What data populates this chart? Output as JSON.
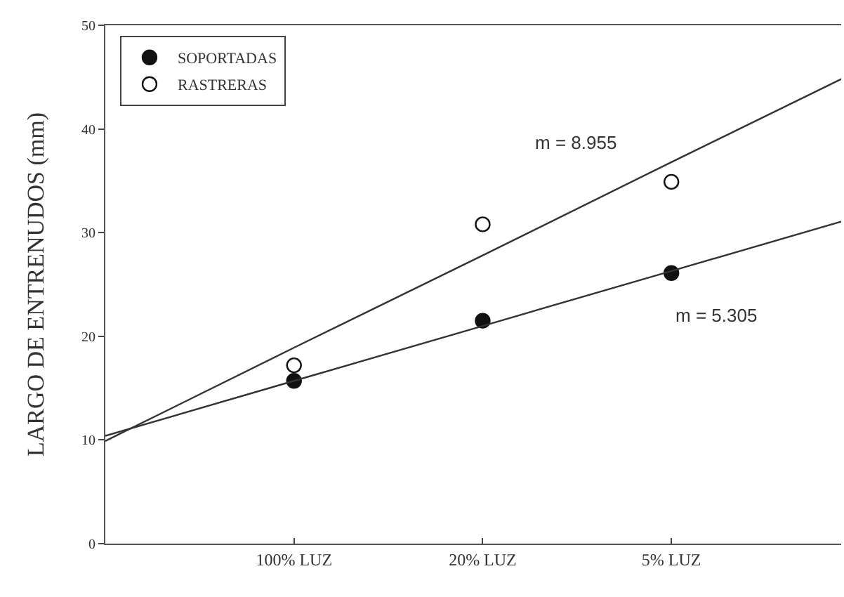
{
  "chart_data": {
    "type": "scatter",
    "ylabel": "LARGO DE ENTRENUDOS (mm)",
    "categories": [
      null,
      "100% LUZ",
      "20% LUZ",
      "5% LUZ",
      null
    ],
    "ylim": [
      0,
      50
    ],
    "yticks": [
      0,
      10,
      20,
      30,
      40,
      50
    ],
    "grid": false,
    "legend": "top left",
    "series": [
      {
        "name": "SOPORTADAS",
        "color": "#111111",
        "marker": "circle",
        "values": [
          null,
          15.7,
          21.5,
          26.1,
          null
        ]
      },
      {
        "name": "RASTRERAS",
        "color": "#111111",
        "marker": "circle-open",
        "values": [
          null,
          17.2,
          30.8,
          34.9,
          null
        ]
      },
      {
        "type": "line",
        "color": "#333333",
        "values": [
          10.4,
          15.7,
          21.0,
          26.3,
          31.6
        ]
      },
      {
        "type": "line",
        "color": "#333333",
        "values": [
          9.9,
          18.9,
          27.8,
          36.8,
          45.7
        ]
      }
    ],
    "annotations": [
      "m = 8.955",
      "m = 5.305"
    ]
  }
}
